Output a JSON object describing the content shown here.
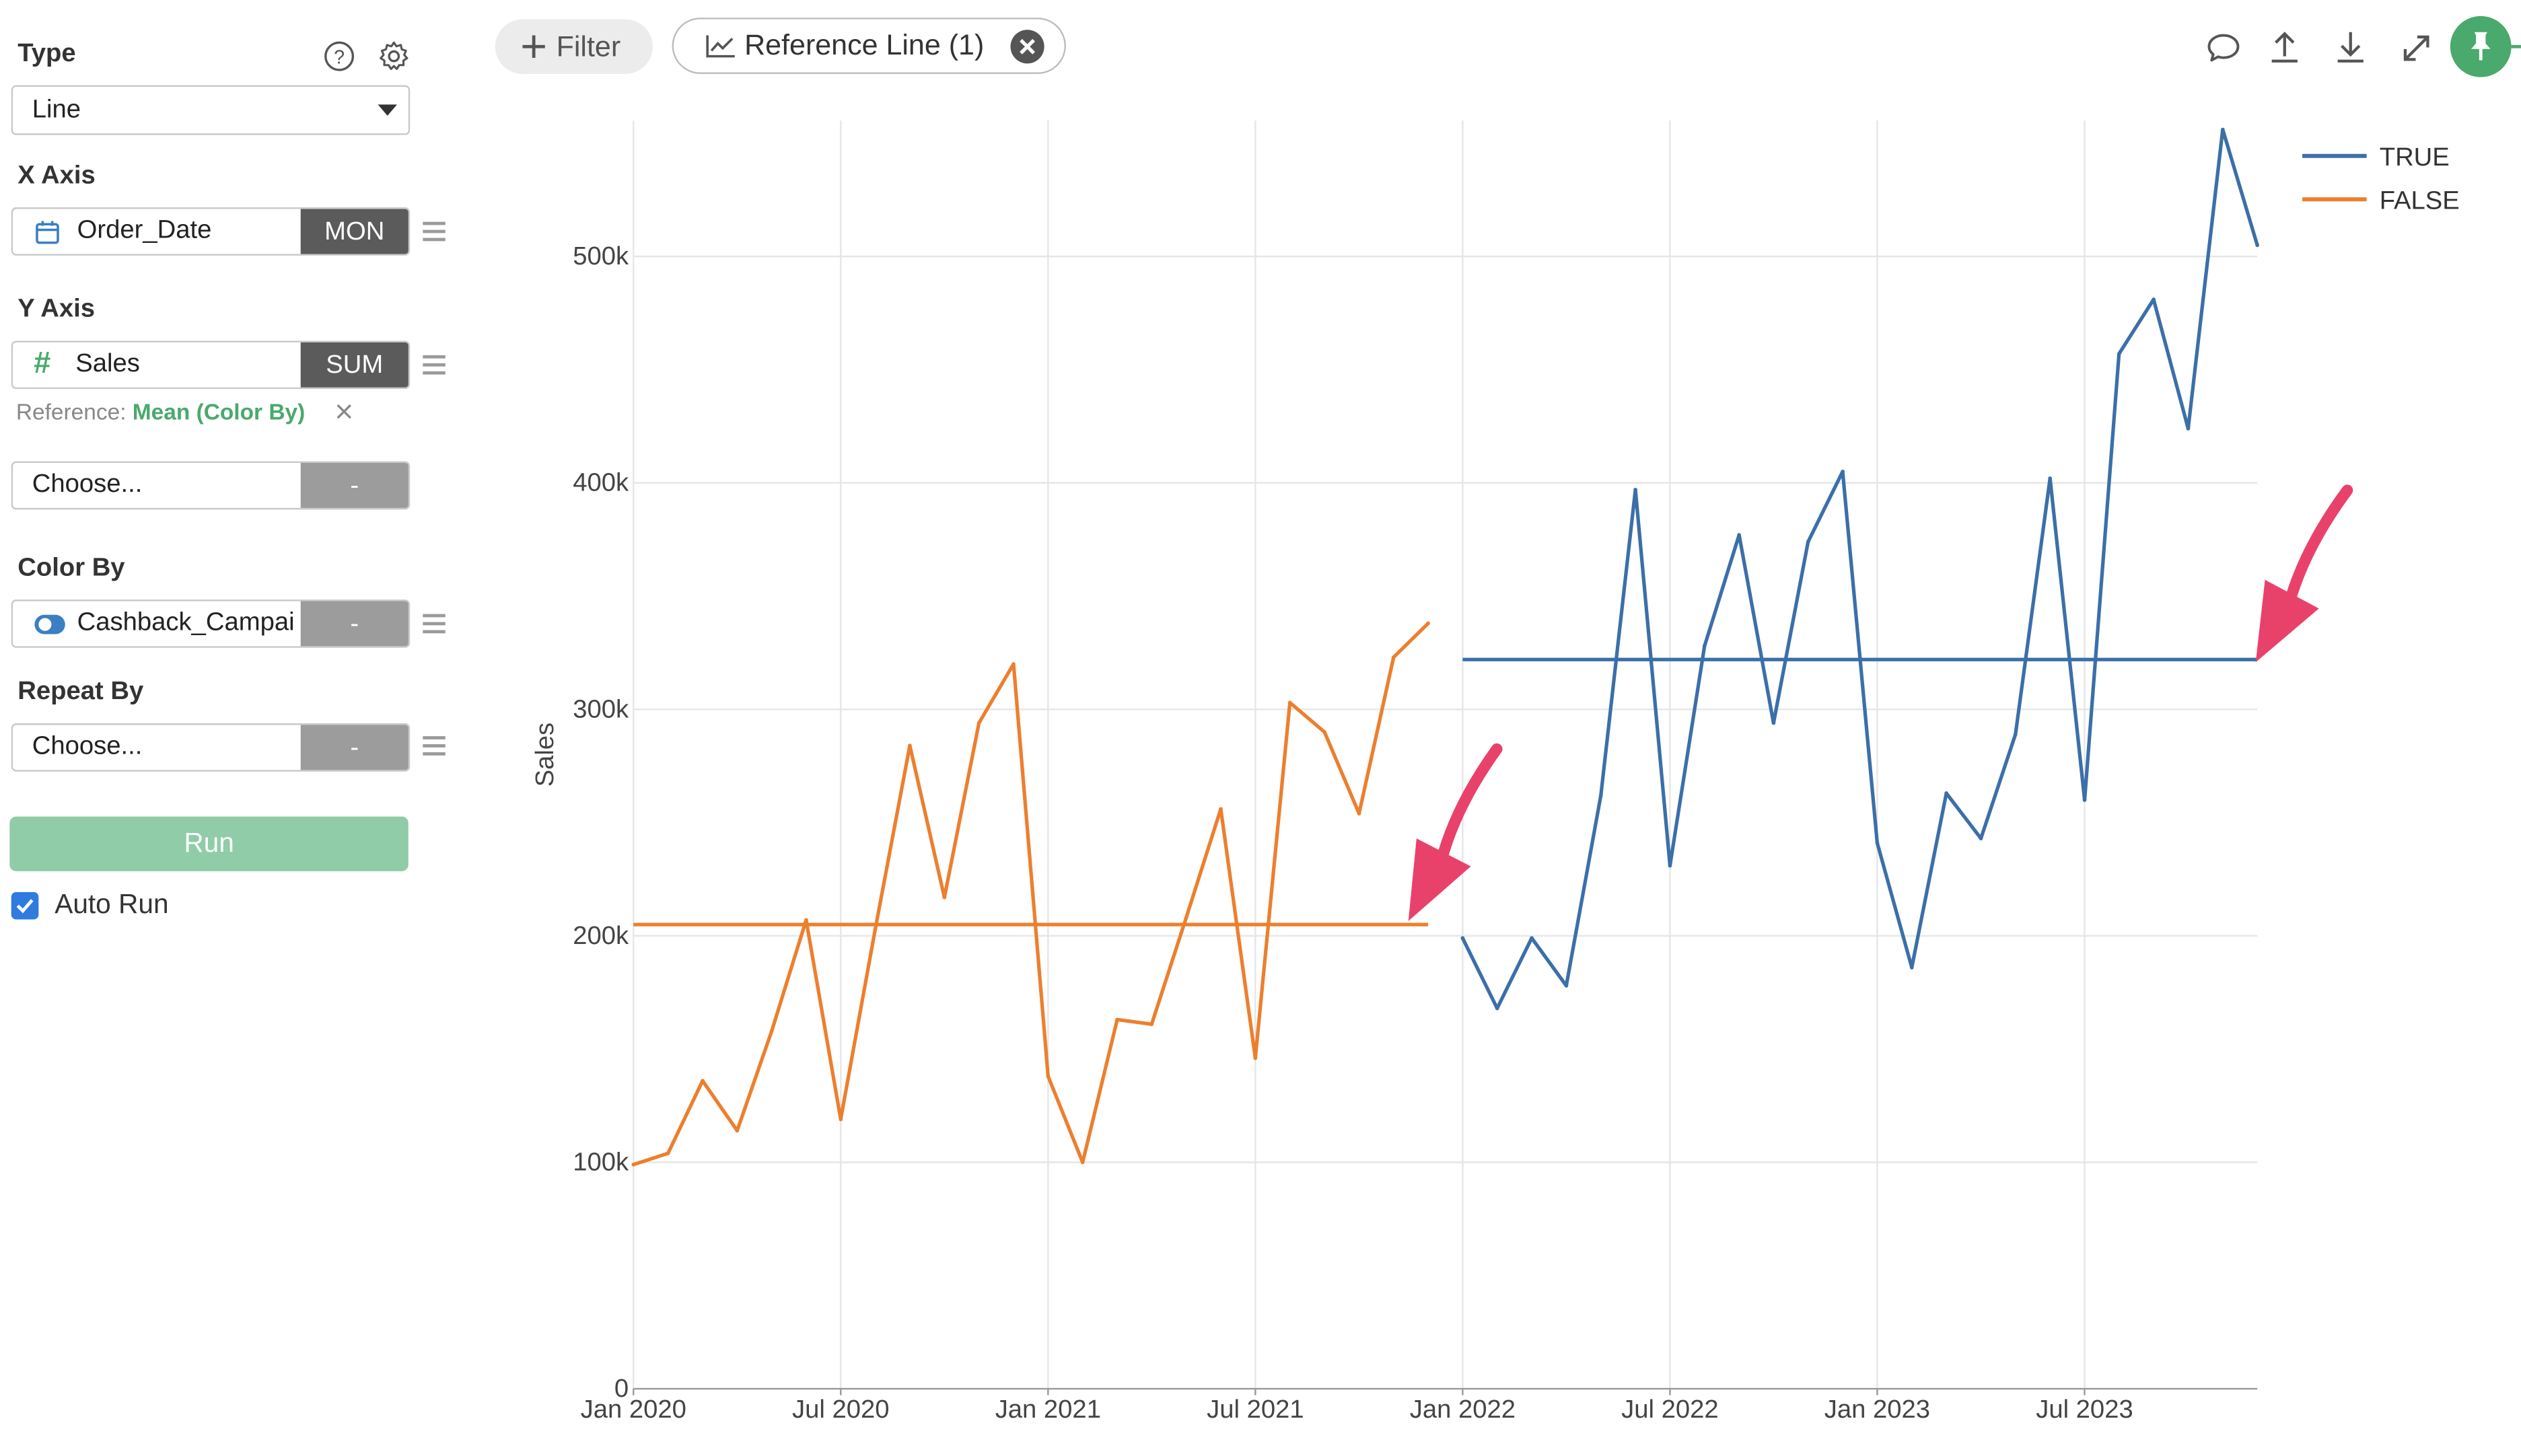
{
  "sidebar": {
    "type_title": "Type",
    "type_value": "Line",
    "x_axis_title": "X Axis",
    "x_field": "Order_Date",
    "x_agg": "MON",
    "y_axis_title": "Y Axis",
    "y_field": "Sales",
    "y_agg": "SUM",
    "reference_prefix": "Reference:",
    "reference_value": "Mean (Color By)",
    "y2_field": "Choose...",
    "y2_agg": "-",
    "color_by_title": "Color By",
    "color_field": "Cashback_Campai",
    "color_agg": "-",
    "repeat_by_title": "Repeat By",
    "repeat_field": "Choose...",
    "repeat_agg": "-",
    "run_label": "Run",
    "auto_run_label": "Auto Run",
    "auto_run_checked": true
  },
  "toolbar": {
    "filter_label": "Filter",
    "reference_chip_label": "Reference Line (1)"
  },
  "icons": {
    "help": "help-circle-icon",
    "settings": "gear-icon",
    "comment": "comment-icon",
    "export": "upload-icon",
    "download": "download-icon",
    "expand": "expand-icon",
    "pin": "pin-icon"
  },
  "colors": {
    "accent_green": "#4aa96c",
    "run_button": "#8fcca7",
    "true_series": "#3b6fa8",
    "false_series": "#ec7f2e",
    "annotation_arrow": "#e8426b"
  },
  "chart_data": {
    "type": "line",
    "xlabel": "",
    "ylabel": "Sales",
    "xlim": [
      "2020-01",
      "2023-12"
    ],
    "ylim": [
      0,
      560000
    ],
    "x_ticks": [
      "Jan 2020",
      "Jul 2020",
      "Jan 2021",
      "Jul 2021",
      "Jan 2022",
      "Jul 2022",
      "Jan 2023",
      "Jul 2023"
    ],
    "y_ticks": [
      0,
      100000,
      200000,
      300000,
      400000,
      500000
    ],
    "y_tick_labels": [
      "0",
      "100k",
      "200k",
      "300k",
      "400k",
      "500k"
    ],
    "grid": true,
    "legend_position": "top-right",
    "series": [
      {
        "name": "FALSE",
        "color": "#ec7f2e",
        "x": [
          "2020-01",
          "2020-02",
          "2020-03",
          "2020-04",
          "2020-05",
          "2020-06",
          "2020-07",
          "2020-08",
          "2020-09",
          "2020-10",
          "2020-11",
          "2020-12",
          "2021-01",
          "2021-02",
          "2021-03",
          "2021-04",
          "2021-05",
          "2021-06",
          "2021-07",
          "2021-08",
          "2021-09",
          "2021-10",
          "2021-11",
          "2021-12"
        ],
        "values": [
          99000,
          104000,
          136000,
          114000,
          158000,
          207000,
          119000,
          203000,
          284000,
          217000,
          294000,
          320000,
          138000,
          100000,
          163000,
          161000,
          208000,
          256000,
          146000,
          303000,
          290000,
          254000,
          323000,
          338000
        ],
        "reference_mean": 205000
      },
      {
        "name": "TRUE",
        "color": "#3b6fa8",
        "x": [
          "2022-01",
          "2022-02",
          "2022-03",
          "2022-04",
          "2022-05",
          "2022-06",
          "2022-07",
          "2022-08",
          "2022-09",
          "2022-10",
          "2022-11",
          "2022-12",
          "2023-01",
          "2023-02",
          "2023-03",
          "2023-04",
          "2023-05",
          "2023-06",
          "2023-07",
          "2023-08",
          "2023-09",
          "2023-10",
          "2023-11",
          "2023-12"
        ],
        "values": [
          199000,
          168000,
          199000,
          178000,
          262000,
          397000,
          231000,
          328000,
          377000,
          294000,
          374000,
          405000,
          241000,
          186000,
          263000,
          243000,
          289000,
          402000,
          260000,
          457000,
          481000,
          424000,
          556000,
          505000
        ],
        "reference_mean": 322000
      }
    ]
  }
}
